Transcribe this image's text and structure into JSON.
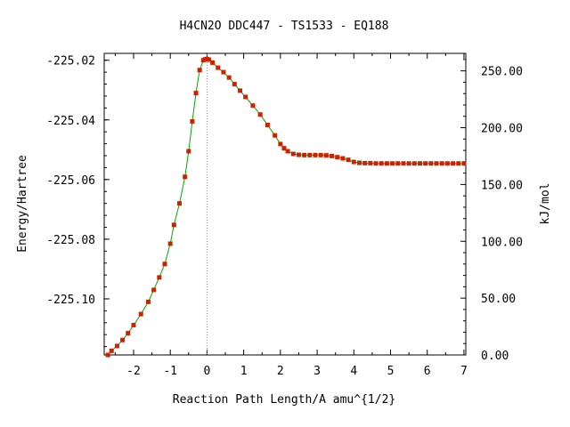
{
  "chart_data": {
    "type": "line",
    "title": "H4CN2O   DDC447 - TS1533 - EQ188",
    "xlabel": "Reaction Path Length/A amu^{1/2}",
    "ylabel": "Energy/Hartree",
    "y2label": "kJ/mol",
    "xlim": [
      -2.8,
      7.05
    ],
    "ylim": [
      -225.1188,
      -225.0177
    ],
    "y2lim": [
      0,
      265.4
    ],
    "x_ticks": [
      -2,
      -1,
      0,
      1,
      2,
      3,
      4,
      5,
      6,
      7
    ],
    "x_tick_labels": [
      "-2",
      "-1",
      "0",
      "1",
      "2",
      "3",
      "4",
      "5",
      "6",
      "7"
    ],
    "y_ticks": [
      -225.02,
      -225.04,
      -225.06,
      -225.08,
      -225.1
    ],
    "y_tick_labels": [
      "-225.02",
      "-225.04",
      "-225.06",
      "-225.08",
      "-225.10"
    ],
    "y2_ticks": [
      0,
      50,
      100,
      150,
      200,
      250
    ],
    "y2_tick_labels": [
      "0.00",
      "50.00",
      "100.00",
      "150.00",
      "200.00",
      "250.00"
    ],
    "ts_x": 0,
    "grid": false,
    "legend": "none",
    "colors": {
      "line": "#00aa00",
      "marker": "#cc2200",
      "ts_line": "#888888",
      "axes": "#000000"
    },
    "series": [
      {
        "x": [
          -2.7,
          -2.6,
          -2.45,
          -2.3,
          -2.15,
          -2.0,
          -1.8,
          -1.6,
          -1.45,
          -1.3,
          -1.15,
          -1.0,
          -0.9,
          -0.75,
          -0.6,
          -0.5,
          -0.4,
          -0.3,
          -0.2,
          -0.1,
          -0.05,
          0.0,
          0.05,
          0.15,
          0.3,
          0.45,
          0.6,
          0.75,
          0.9,
          1.05,
          1.25,
          1.45,
          1.65,
          1.85,
          2.0,
          2.1,
          2.2,
          2.35,
          2.5,
          2.65,
          2.8,
          2.95,
          3.1,
          3.25,
          3.4,
          3.55,
          3.7,
          3.85,
          4.0,
          4.15,
          4.3,
          4.45,
          4.6,
          4.75,
          4.9,
          5.05,
          5.2,
          5.35,
          5.5,
          5.65,
          5.8,
          5.95,
          6.1,
          6.25,
          6.4,
          6.55,
          6.7,
          6.85,
          7.0
        ],
        "y": [
          -225.1188,
          -225.1174,
          -225.1158,
          -225.1138,
          -225.1115,
          -225.1088,
          -225.1051,
          -225.101,
          -225.097,
          -225.0928,
          -225.0883,
          -225.0815,
          -225.0752,
          -225.068,
          -225.0591,
          -225.0505,
          -225.0405,
          -225.031,
          -225.0233,
          -225.02,
          -225.0197,
          -225.0196,
          -225.0198,
          -225.0208,
          -225.0225,
          -225.024,
          -225.0258,
          -225.028,
          -225.0302,
          -225.0323,
          -225.0352,
          -225.0382,
          -225.0417,
          -225.0452,
          -225.0481,
          -225.0495,
          -225.0505,
          -225.0514,
          -225.0517,
          -225.0518,
          -225.0518,
          -225.0518,
          -225.0518,
          -225.0519,
          -225.0521,
          -225.0525,
          -225.0529,
          -225.0534,
          -225.0541,
          -225.0544,
          -225.0545,
          -225.0545,
          -225.0546,
          -225.0546,
          -225.0546,
          -225.0546,
          -225.0546,
          -225.0546,
          -225.0546,
          -225.0546,
          -225.0546,
          -225.0546,
          -225.0546,
          -225.0546,
          -225.0546,
          -225.0546,
          -225.0546,
          -225.0546,
          -225.0546
        ]
      }
    ]
  }
}
